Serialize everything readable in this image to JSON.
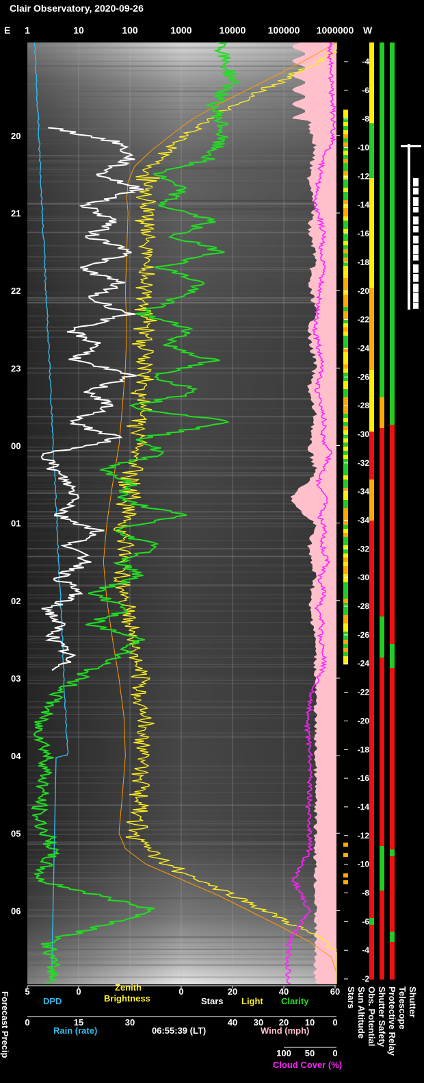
{
  "title": "Clair Observatory, 2020-09-26",
  "top_axis": {
    "left_label": "E",
    "right_label": "W",
    "ticks": [
      "1",
      "10",
      "100",
      "1000",
      "10000",
      "100000",
      "1000000"
    ]
  },
  "time_axis": {
    "ticks": [
      "20",
      "21",
      "22",
      "23",
      "00",
      "01",
      "02",
      "03",
      "04",
      "05",
      "06"
    ]
  },
  "sun_altitude_scale": {
    "labels": [
      "-4",
      "-6",
      "-8",
      "-10",
      "-12",
      "-14",
      "-16",
      "-18",
      "-20",
      "-22",
      "-24",
      "-26",
      "-28",
      "-30",
      "-32",
      "-34",
      "-34",
      "-32",
      "-30",
      "-28",
      "-26",
      "-24",
      "-22",
      "-20",
      "-18",
      "-16",
      "-14",
      "-12",
      "-10",
      "-8",
      "-6",
      "-4",
      "-2"
    ]
  },
  "bottom_axes": {
    "dpd": {
      "ticks": [
        "5",
        "0"
      ],
      "label": "DPD"
    },
    "zenith": {
      "ticks": [
        "0"
      ],
      "label_line1": "Zenith",
      "label_line2": "Brightness"
    },
    "stars_light_clarity": {
      "ticks": [
        "0",
        "20",
        "40",
        "60"
      ],
      "stars_label": "Stars",
      "light_label": "Light",
      "clarity_label": "Clarity"
    },
    "rain": {
      "ticks": [
        "0",
        "15",
        "30"
      ],
      "label": "Rain (rate)"
    },
    "time_label": "06:55:39 (LT)",
    "wind": {
      "ticks": [
        "40",
        "30",
        "20",
        "10",
        "0"
      ],
      "label": "Wind (mph)"
    },
    "cloud": {
      "ticks": [
        "100",
        "50",
        "0"
      ],
      "label": "Cloud Cover (%)"
    }
  },
  "side_labels": [
    "Stars",
    "Sun Altitude",
    "Obs. Potential",
    "Shutter Safety",
    "Protective Relay",
    "Telescope",
    "Shutter",
    "Forecast Precip"
  ],
  "colors": {
    "dpd": "#33bbee",
    "zenith": "#ffee22",
    "zenith_model": "#ff9900",
    "stars": "#ffffff",
    "clarity": "#22dd22",
    "cloud": "#ff22ff",
    "wind": "#ffc0cb",
    "good": "#22cc22",
    "warn": "#ffaa00",
    "caution": "#ffee00",
    "bad": "#ee1111"
  },
  "chart_data": {
    "type": "line",
    "title": "Clair Observatory, 2020-09-26",
    "time_ticks": [
      "20",
      "21",
      "22",
      "23",
      "00",
      "01",
      "02",
      "03",
      "04",
      "05",
      "06"
    ],
    "series": [
      {
        "name": "Stars",
        "x_hours": [
          19.9,
          20.1,
          20.3,
          20.5,
          20.7,
          20.9,
          21.1,
          21.3,
          21.5,
          21.7,
          21.9,
          22.1,
          22.3,
          22.5,
          22.7,
          22.9,
          23.1,
          23.3,
          23.5,
          23.7,
          23.9,
          24.1,
          24.3,
          24.5,
          24.7,
          24.9,
          25.1,
          25.3,
          25.5,
          25.7,
          25.9,
          26.1,
          26.3,
          26.5,
          26.7,
          26.9
        ],
        "values": [
          5,
          18,
          20,
          14,
          22,
          11,
          17,
          12,
          21,
          10,
          18,
          12,
          20,
          8,
          14,
          9,
          20,
          12,
          16,
          8,
          18,
          4,
          5,
          8,
          10,
          6,
          14,
          8,
          12,
          6,
          10,
          4,
          6,
          5,
          8,
          6
        ]
      },
      {
        "name": "Clarity",
        "x_hours": [
          19.0,
          19.3,
          19.6,
          19.9,
          20.1,
          20.3,
          20.5,
          20.7,
          20.9,
          21.1,
          21.3,
          21.5,
          21.7,
          21.9,
          22.1,
          22.3,
          22.5,
          22.7,
          22.9,
          23.1,
          23.3,
          23.5,
          23.7,
          23.9,
          24.1,
          24.3,
          24.5,
          24.7,
          24.9,
          25.1,
          25.3,
          25.5,
          25.7,
          25.9,
          26.1,
          26.3,
          26.5,
          26.7,
          26.9,
          27.2,
          27.6,
          28.0,
          28.4,
          28.8,
          29.2,
          29.6,
          30.0,
          30.4,
          30.8
        ],
        "values": [
          38,
          40,
          36,
          38,
          37,
          35,
          25,
          30,
          26,
          36,
          28,
          38,
          26,
          34,
          29,
          22,
          32,
          27,
          36,
          24,
          34,
          20,
          40,
          22,
          26,
          15,
          20,
          18,
          30,
          16,
          26,
          18,
          22,
          12,
          20,
          12,
          22,
          18,
          12,
          6,
          2,
          4,
          3,
          2,
          5,
          2,
          25,
          4,
          5
        ]
      },
      {
        "name": "Cloud Cover (%)",
        "x_hours": [
          19.0,
          19.3,
          19.6,
          19.9,
          20.1,
          20.3,
          20.5,
          20.7,
          20.9,
          21.1,
          21.3,
          21.5,
          21.7,
          21.9,
          22.1,
          22.3,
          22.5,
          22.7,
          22.9,
          23.1,
          23.3,
          23.5,
          23.7,
          23.9,
          24.1,
          24.3,
          24.5,
          24.7,
          24.9,
          25.1,
          25.3,
          25.5,
          25.7,
          25.9,
          26.1,
          26.3,
          26.5,
          26.7,
          26.9,
          27.2,
          27.6,
          28.0,
          28.4,
          28.8,
          29.2,
          29.6,
          30.0,
          30.4,
          30.8
        ],
        "values": [
          10,
          8,
          5,
          4,
          5,
          25,
          30,
          35,
          40,
          28,
          22,
          30,
          22,
          28,
          30,
          35,
          40,
          33,
          25,
          30,
          35,
          28,
          20,
          25,
          10,
          20,
          35,
          15,
          30,
          20,
          25,
          15,
          30,
          20,
          35,
          25,
          30,
          20,
          25,
          45,
          55,
          48,
          50,
          52,
          48,
          80,
          52,
          90,
          92
        ]
      },
      {
        "name": "Zenith Brightness",
        "x_hours": [
          18.8,
          19.0,
          19.2,
          19.4,
          19.6,
          19.8,
          20.0,
          20.2,
          20.4,
          20.6,
          20.8,
          21.0,
          21.5,
          22.0,
          22.5,
          23.0,
          23.5,
          24.0,
          24.5,
          25.0,
          25.5,
          26.0,
          26.5,
          27.0,
          27.5,
          28.0,
          28.5,
          29.0,
          29.2,
          29.4,
          29.6,
          29.8,
          30.0,
          30.2,
          30.4,
          30.6,
          30.8
        ],
        "values": [
          1000000,
          300000,
          80000,
          20000,
          5000,
          1500,
          600,
          250,
          120,
          90,
          85,
          90,
          85,
          80,
          85,
          80,
          70,
          60,
          45,
          35,
          30,
          35,
          45,
          60,
          75,
          80,
          70,
          60,
          80,
          200,
          1000,
          5000,
          20000,
          80000,
          300000,
          800000,
          1000000
        ]
      }
    ]
  }
}
